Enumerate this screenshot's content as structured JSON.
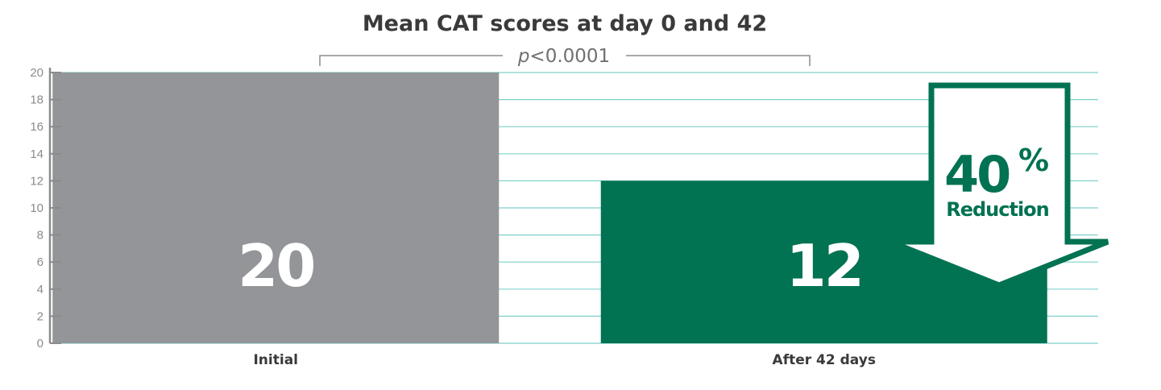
{
  "colors": {
    "initial_bar": "#939598",
    "after_bar": "#017252",
    "grid": "#7fd0cb",
    "axis": "#8a8b8e",
    "arrow": "#017252"
  },
  "chart_data": {
    "type": "bar",
    "title": "Mean CAT scores at day 0 and 42",
    "categories": [
      "Initial",
      "After 42 days"
    ],
    "values": [
      20,
      12
    ],
    "value_labels": [
      "20",
      "12"
    ],
    "ylim": [
      0,
      20
    ],
    "yticks": [
      0,
      2,
      4,
      6,
      8,
      10,
      12,
      14,
      16,
      18,
      20
    ],
    "grid": true,
    "xlabel": "",
    "ylabel": "",
    "annotations": {
      "p_prefix": "p",
      "p_suffix": "<0.0001",
      "reduction_value": "40",
      "reduction_unit": "%",
      "reduction_text": "Reduction"
    }
  }
}
